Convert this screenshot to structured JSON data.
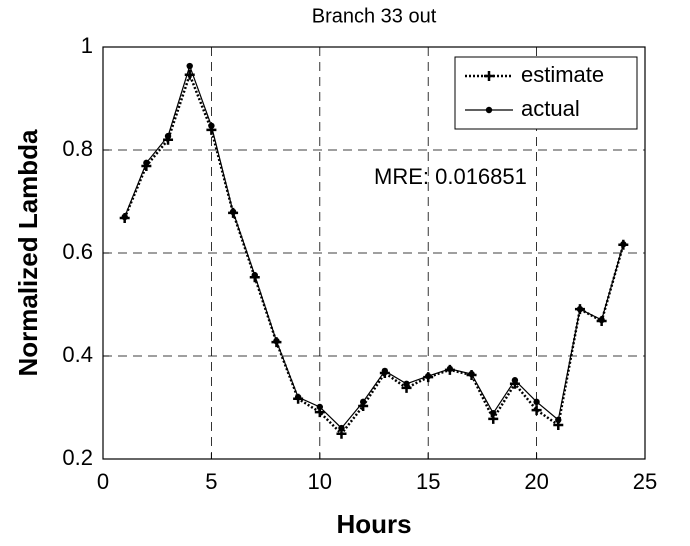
{
  "chart_data": {
    "type": "line",
    "title": "Branch 33 out",
    "xlabel": "Hours",
    "ylabel": "Normalized Lambda",
    "annotation": "MRE: 0.016851",
    "x": [
      1,
      2,
      3,
      4,
      5,
      6,
      7,
      8,
      9,
      10,
      11,
      12,
      13,
      14,
      15,
      16,
      17,
      18,
      19,
      20,
      21,
      22,
      23,
      24
    ],
    "series": [
      {
        "name": "estimate",
        "color": "#000000",
        "linestyle": "dotted",
        "marker": "+",
        "values": [
          0.668,
          0.769,
          0.82,
          0.946,
          0.839,
          0.678,
          0.553,
          0.427,
          0.317,
          0.291,
          0.249,
          0.303,
          0.367,
          0.338,
          0.359,
          0.373,
          0.363,
          0.278,
          0.346,
          0.295,
          0.266,
          0.491,
          0.468,
          0.616
        ]
      },
      {
        "name": "actual",
        "color": "#000000",
        "linestyle": "solid",
        "marker": "o",
        "values": [
          0.67,
          0.775,
          0.827,
          0.963,
          0.847,
          0.68,
          0.557,
          0.429,
          0.32,
          0.301,
          0.26,
          0.311,
          0.371,
          0.346,
          0.361,
          0.375,
          0.365,
          0.289,
          0.353,
          0.311,
          0.276,
          0.491,
          0.47,
          0.617
        ]
      }
    ],
    "xlim": [
      0,
      25
    ],
    "xticks": [
      0,
      5,
      10,
      15,
      20,
      25
    ],
    "ylim": [
      0.2,
      1
    ],
    "yticks": [
      0.2,
      0.4,
      0.6,
      0.8,
      1
    ],
    "grid": true,
    "legend": "upper right"
  }
}
